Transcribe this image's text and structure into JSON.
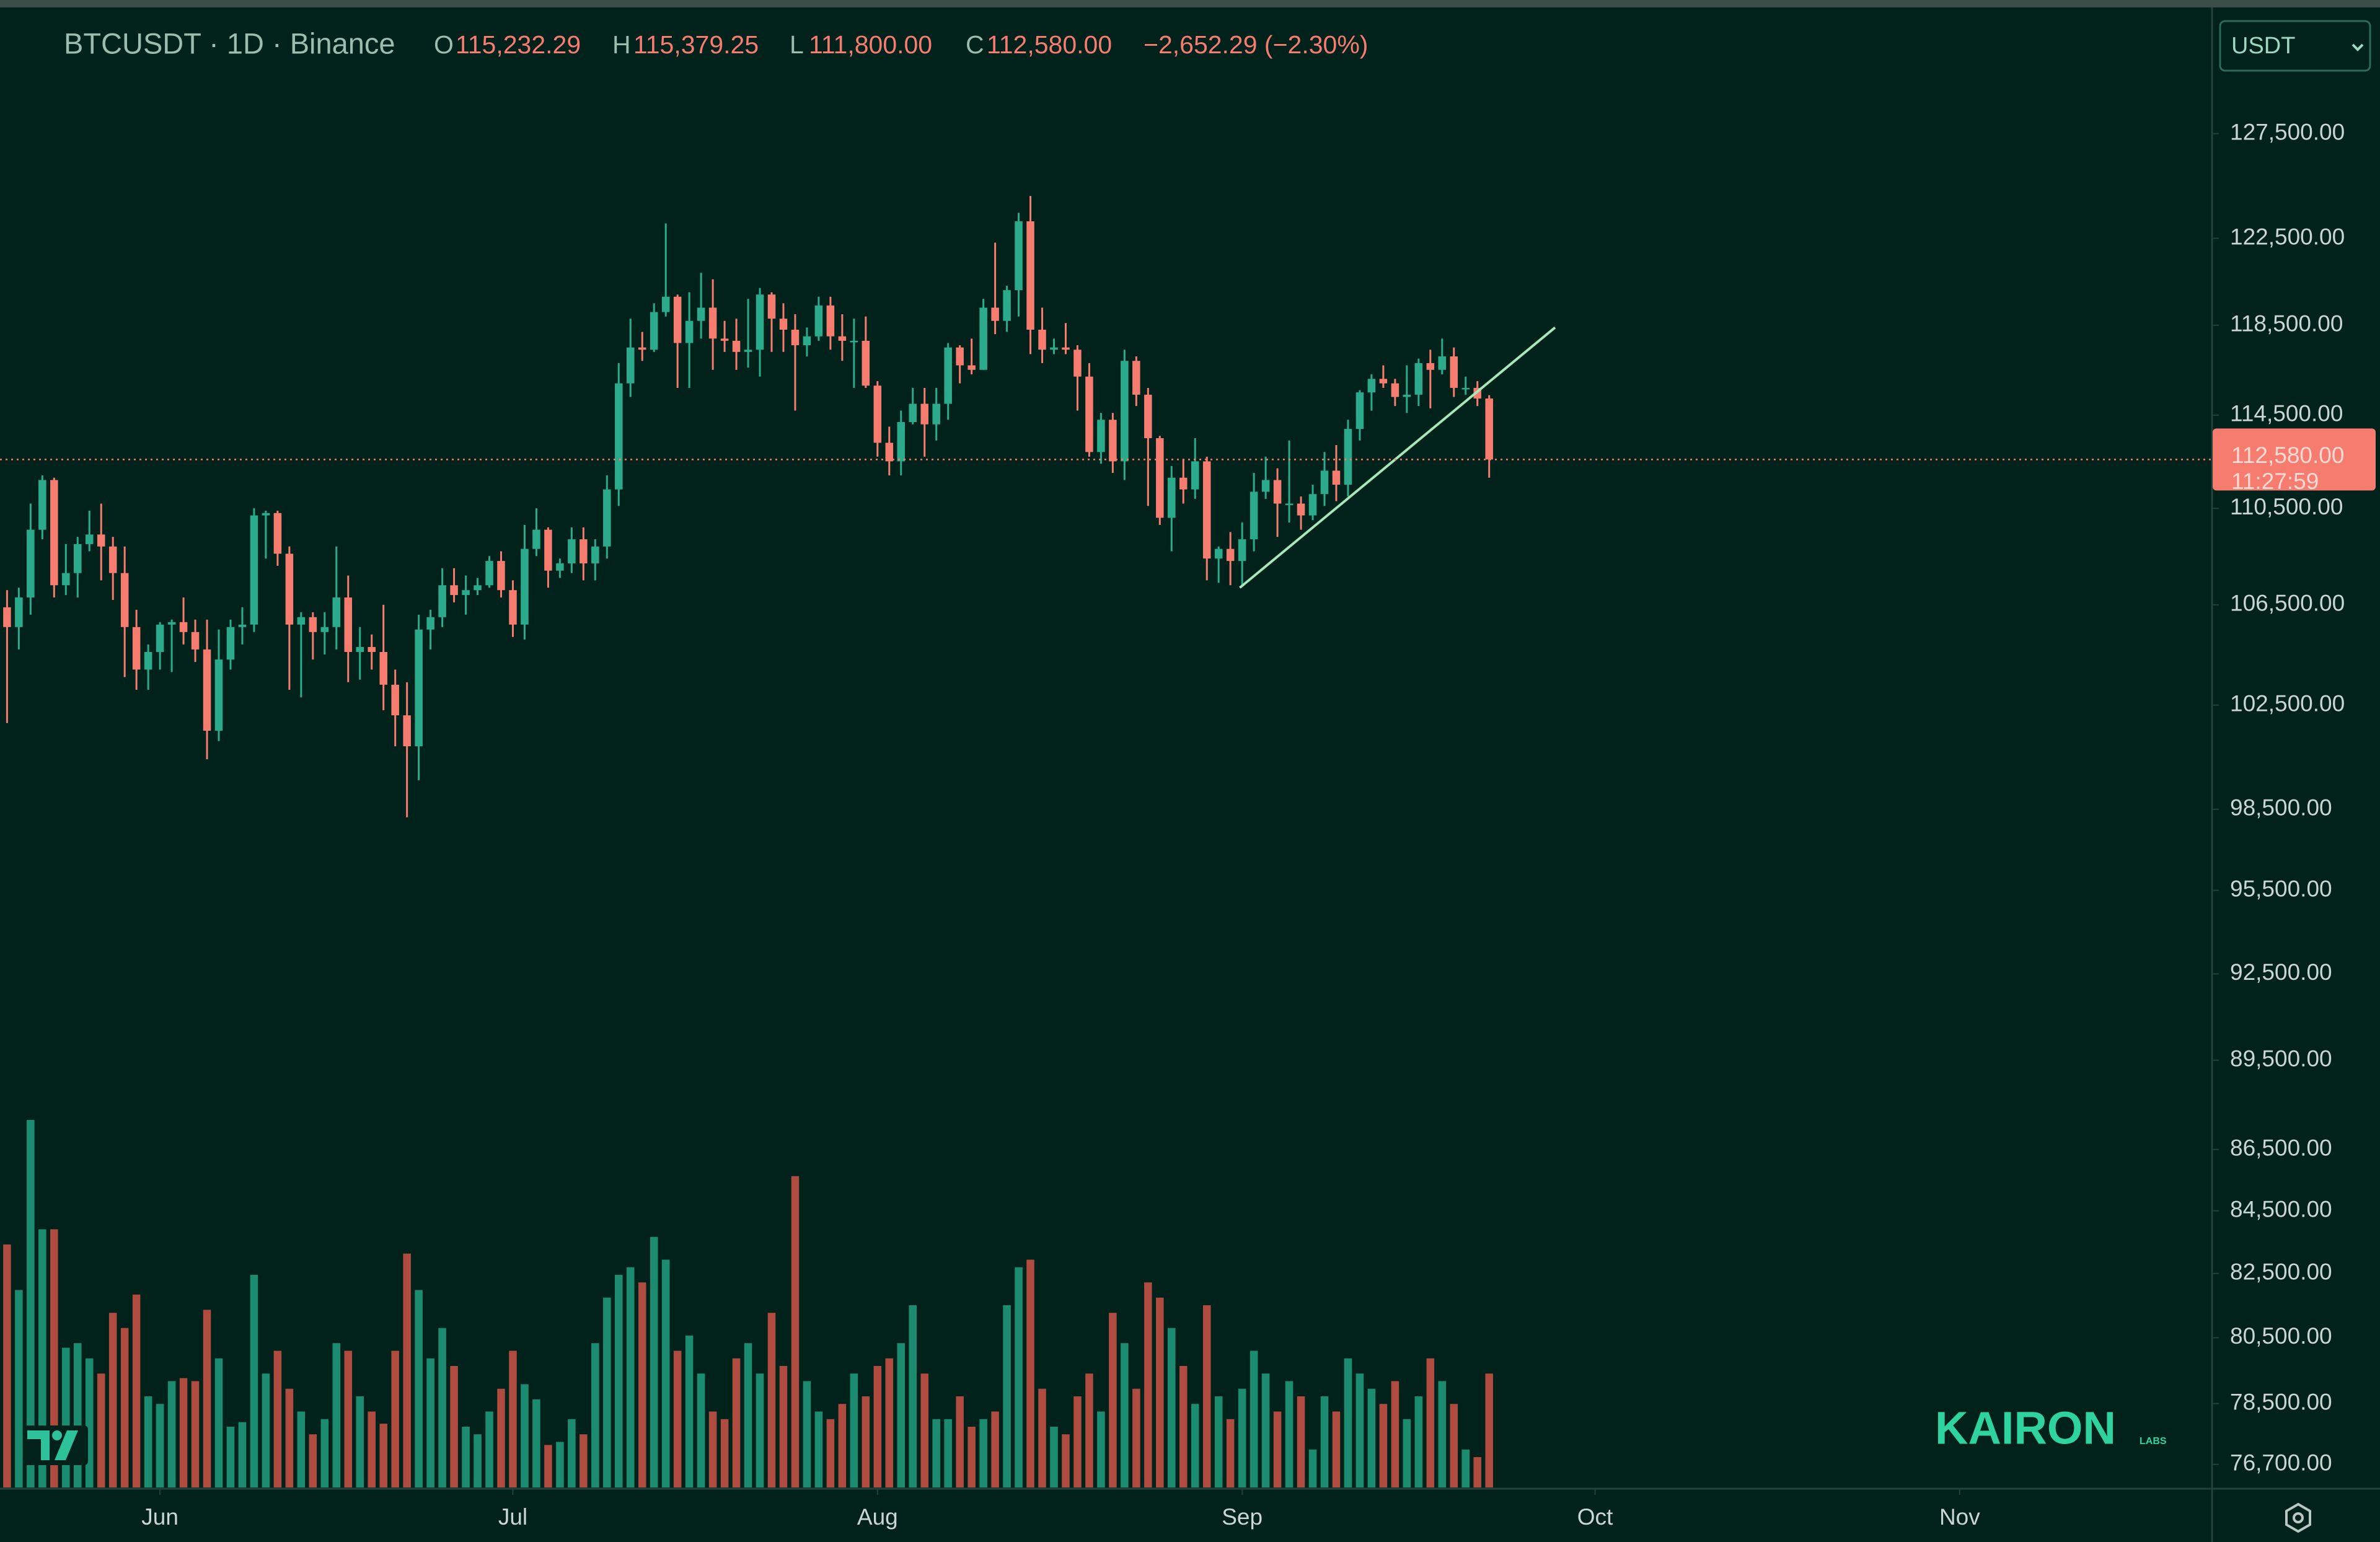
{
  "chart_data": {
    "type": "candlestick",
    "title": "BTCUSDT · 1D · Binance",
    "ohlc_header": [
      {
        "label": "O",
        "value": "115,232.29"
      },
      {
        "label": "H",
        "value": "115,379.25"
      },
      {
        "label": "L",
        "value": "111,800.00"
      },
      {
        "label": "C",
        "value": "112,580.00"
      }
    ],
    "change": "−2,652.29 (−2.30%)",
    "currency": "USDT",
    "price_label": "112,580.00",
    "countdown": "11:27:59",
    "watermark": "KAIRON",
    "watermark_sub": "LABS",
    "log_scale": true,
    "up_color": "#2bab8c",
    "down_color": "#f77c70",
    "up_volume_color": "#1c8c70",
    "down_volume_color": "#b04b3f",
    "trendline_color": "#a6e8b9",
    "ylim": [
      76026,
      133398
    ],
    "yticks": [
      {
        "value": 127500,
        "label": "127,500.00"
      },
      {
        "value": 122500,
        "label": "122,500.00"
      },
      {
        "value": 118500,
        "label": "118,500.00"
      },
      {
        "value": 114500,
        "label": "114,500.00"
      },
      {
        "value": 110500,
        "label": "110,500.00"
      },
      {
        "value": 106500,
        "label": "106,500.00"
      },
      {
        "value": 102500,
        "label": "102,500.00"
      },
      {
        "value": 98500,
        "label": "98,500.00"
      },
      {
        "value": 95500,
        "label": "95,500.00"
      },
      {
        "value": 92500,
        "label": "92,500.00"
      },
      {
        "value": 89500,
        "label": "89,500.00"
      },
      {
        "value": 86500,
        "label": "86,500.00"
      },
      {
        "value": 84500,
        "label": "84,500.00"
      },
      {
        "value": 82500,
        "label": "82,500.00"
      },
      {
        "value": 80500,
        "label": "80,500.00"
      },
      {
        "value": 78500,
        "label": "78,500.00"
      },
      {
        "value": 76700,
        "label": "76,700.00"
      }
    ],
    "xlim": [
      -0.6,
      187.4
    ],
    "xticks": [
      {
        "value": 13,
        "label": "Jun"
      },
      {
        "value": 43,
        "label": "Jul"
      },
      {
        "value": 74,
        "label": "Aug"
      },
      {
        "value": 105,
        "label": "Sep"
      },
      {
        "value": 135,
        "label": "Oct"
      },
      {
        "value": 166,
        "label": "Nov"
      }
    ],
    "open": [
      106400,
      105600,
      106800,
      109600,
      111700,
      107300,
      107800,
      109000,
      109400,
      108900,
      107800,
      105600,
      103900,
      104600,
      105700,
      105800,
      105400,
      104700,
      101500,
      104300,
      105600,
      105700,
      110200,
      110300,
      108600,
      105700,
      106000,
      105400,
      105600,
      106800,
      104600,
      104800,
      104600,
      103300,
      102100,
      100900,
      105500,
      106000,
      107300,
      106900,
      107100,
      107300,
      108300,
      107100,
      105700,
      108800,
      109600,
      107900,
      108200,
      109200,
      108200,
      108900,
      111300,
      115900,
      117500,
      117400,
      119100,
      119800,
      117700,
      118700,
      119300,
      117900,
      117800,
      117300,
      117400,
      119900,
      118800,
      118300,
      117600,
      118000,
      119400,
      118000,
      117800,
      117800,
      115800,
      113300,
      112500,
      114200,
      115000,
      114100,
      115000,
      117500,
      116700,
      116500,
      119300,
      118700,
      120100,
      123300,
      118300,
      117400,
      117500,
      117400,
      116200,
      112900,
      114300,
      112500,
      116900,
      115400,
      113500,
      110100,
      111800,
      111300,
      112500,
      108400,
      108800,
      108300,
      109200,
      111200,
      111700,
      110700,
      110700,
      110200,
      111100,
      112100,
      111500,
      113900,
      115500,
      116100,
      115900,
      115300,
      115400,
      116800,
      116500,
      117100,
      115700,
      115700,
      115232.29
    ],
    "high": [
      107100,
      107200,
      110700,
      111900,
      111800,
      109000,
      109300,
      110400,
      110700,
      109300,
      108900,
      106300,
      104900,
      105800,
      105900,
      106800,
      105900,
      105900,
      105500,
      105900,
      106400,
      110500,
      110400,
      110400,
      108900,
      106200,
      106200,
      106200,
      108900,
      107700,
      105600,
      105300,
      106500,
      103900,
      103400,
      106100,
      106300,
      108000,
      108000,
      107700,
      107600,
      108500,
      108700,
      107500,
      109800,
      110500,
      109700,
      108400,
      109700,
      109700,
      109200,
      111900,
      116800,
      118800,
      118200,
      119500,
      123200,
      119900,
      120000,
      120900,
      120600,
      118700,
      118800,
      119700,
      120200,
      120000,
      119500,
      119000,
      118400,
      119800,
      119800,
      119000,
      118800,
      118900,
      116000,
      114000,
      114700,
      115700,
      115700,
      115700,
      117700,
      117600,
      117900,
      119700,
      122300,
      120300,
      123700,
      124500,
      119300,
      117900,
      118600,
      117600,
      116800,
      114600,
      114600,
      117400,
      117100,
      115700,
      113600,
      112300,
      112600,
      113500,
      112700,
      108900,
      109500,
      109900,
      112000,
      112700,
      112200,
      113400,
      111000,
      111500,
      112900,
      113200,
      114300,
      115600,
      116300,
      116700,
      116100,
      116700,
      117000,
      117400,
      117900,
      117500,
      116200,
      116000,
      115379.25
    ],
    "low": [
      101800,
      104700,
      106100,
      109200,
      106800,
      106900,
      106800,
      108700,
      107500,
      106700,
      103600,
      103100,
      103100,
      103900,
      103800,
      104900,
      104200,
      100400,
      101100,
      103900,
      104900,
      105400,
      108400,
      108100,
      103100,
      102800,
      104300,
      104500,
      104700,
      103400,
      103500,
      103900,
      102300,
      100900,
      98200,
      99600,
      104700,
      105600,
      106600,
      106100,
      106900,
      107200,
      106800,
      105200,
      105100,
      108500,
      107200,
      107600,
      107800,
      107500,
      107500,
      108400,
      110600,
      115300,
      116900,
      117300,
      118900,
      115700,
      115700,
      117900,
      116500,
      117300,
      116500,
      116600,
      116200,
      117300,
      117300,
      114700,
      117100,
      117800,
      117400,
      116900,
      115700,
      115700,
      112700,
      111900,
      111900,
      114100,
      112700,
      113400,
      114300,
      115900,
      116300,
      116500,
      118100,
      118200,
      118900,
      117200,
      116800,
      117200,
      117200,
      114700,
      112700,
      112400,
      112000,
      111700,
      114900,
      110600,
      109800,
      108700,
      110700,
      110900,
      107500,
      107400,
      107300,
      107300,
      108700,
      110900,
      109300,
      109900,
      109600,
      110000,
      110600,
      110800,
      111000,
      113400,
      114700,
      115700,
      114900,
      114600,
      114900,
      114800,
      116300,
      115300,
      115400,
      114900,
      111800
    ],
    "close": [
      105600,
      106800,
      109600,
      111700,
      107300,
      107800,
      109000,
      109400,
      108900,
      107800,
      105600,
      103900,
      104600,
      105700,
      105800,
      105400,
      104700,
      101500,
      104300,
      105600,
      105700,
      110200,
      110300,
      108600,
      105700,
      106000,
      105400,
      105600,
      106800,
      104600,
      104800,
      104600,
      103300,
      102100,
      100900,
      105500,
      106000,
      107300,
      106900,
      107100,
      107300,
      108300,
      107100,
      105700,
      108800,
      109600,
      107900,
      108200,
      109200,
      108200,
      108900,
      111300,
      115900,
      117500,
      117400,
      119100,
      119800,
      117700,
      118700,
      119300,
      117900,
      117800,
      117300,
      117400,
      119900,
      118800,
      118300,
      117600,
      118000,
      119400,
      118000,
      117800,
      117800,
      115800,
      113300,
      112500,
      114200,
      115000,
      114100,
      115000,
      117500,
      116700,
      116500,
      119300,
      118700,
      120100,
      123300,
      118300,
      117400,
      117500,
      117400,
      116200,
      112900,
      114300,
      112500,
      116900,
      115400,
      113500,
      110100,
      111800,
      111300,
      112500,
      108400,
      108800,
      108300,
      109200,
      111200,
      111700,
      110700,
      110700,
      110200,
      111100,
      112100,
      111500,
      113900,
      115500,
      116100,
      115900,
      115300,
      115400,
      116800,
      116500,
      117100,
      115700,
      115700,
      115232.29,
      112580.0
    ],
    "volume": [
      16000,
      13000,
      24200,
      17000,
      17000,
      9200,
      9500,
      8500,
      7500,
      11500,
      10500,
      12700,
      6000,
      5500,
      7000,
      7200,
      7000,
      11700,
      8500,
      4000,
      4300,
      14000,
      7500,
      9000,
      6500,
      5000,
      3500,
      4500,
      9500,
      9000,
      6000,
      5000,
      4200,
      9000,
      15400,
      13000,
      8500,
      10500,
      8000,
      4000,
      3500,
      5000,
      6500,
      9000,
      6800,
      5800,
      2800,
      3000,
      4500,
      3500,
      9500,
      12500,
      14000,
      14500,
      13500,
      16500,
      15000,
      9000,
      10000,
      7500,
      5000,
      4500,
      8500,
      9500,
      7500,
      11500,
      8000,
      20500,
      7000,
      5000,
      4500,
      5500,
      7500,
      6000,
      8000,
      8500,
      9500,
      12000,
      7500,
      4500,
      4500,
      6000,
      4000,
      4500,
      5000,
      12000,
      14500,
      15000,
      6500,
      4000,
      3500,
      6000,
      7500,
      5000,
      11500,
      9500,
      6500,
      13500,
      12500,
      10500,
      8000,
      5500,
      12000,
      6000,
      4500,
      6500,
      9000,
      7500,
      5000,
      7000,
      6000,
      2500,
      6000,
      5000,
      8500,
      7500,
      6500,
      5500,
      7000,
      4500,
      6000,
      8500,
      7000,
      5500,
      2500,
      2000,
      7500
    ],
    "trendline": {
      "x": [
        104.8,
        131.6
      ],
      "y": [
        107200,
        118400
      ]
    }
  }
}
